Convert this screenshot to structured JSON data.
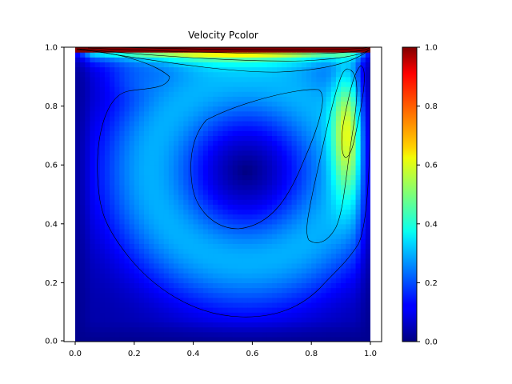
{
  "chart_data": {
    "type": "heatmap",
    "title": "Velocity Pcolor",
    "xlabel": "",
    "ylabel": "",
    "xlim": [
      -0.04,
      1.04
    ],
    "ylim": [
      -0.01,
      1.0
    ],
    "x_ticks": [
      "0.0",
      "0.2",
      "0.4",
      "0.6",
      "0.8",
      "1.0"
    ],
    "y_ticks": [
      "0.0",
      "0.2",
      "0.4",
      "0.6",
      "0.8",
      "1.0"
    ],
    "colormap": "jet",
    "colorbar": {
      "range": [
        0.0,
        1.0
      ],
      "ticks": [
        "0.0",
        "0.2",
        "0.4",
        "0.6",
        "0.8",
        "1.0"
      ]
    },
    "field": {
      "description_values": [
        {
          "region": "lid (y near 1.0)",
          "value": 1.0
        },
        {
          "region": "vortex core (x 0.58, y 0.58)",
          "value": 0.0
        },
        {
          "region": "right-side jet (x 0.93, y 0.78)",
          "value": 0.55
        },
        {
          "region": "walls and bottom corners",
          "value": 0.0
        }
      ]
    },
    "contour_levels": [
      0.1,
      0.2,
      0.3,
      0.4,
      0.6,
      0.8
    ],
    "grid": false
  },
  "colors": {
    "background": "#ffffff",
    "axis": "#000000",
    "contour": "#000000"
  }
}
